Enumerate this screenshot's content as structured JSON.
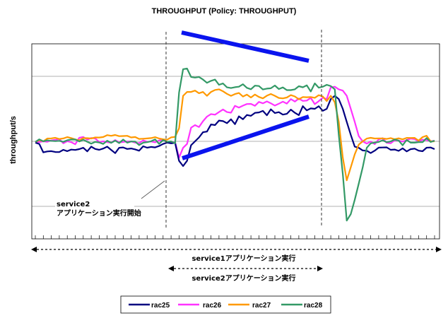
{
  "chart_data": {
    "type": "line",
    "title": "THROUGHPUT (Policy: THROUGHPUT)",
    "xlabel": "",
    "ylabel": "throughput/s",
    "ylim": [
      -0.5,
      2.5
    ],
    "x_count": 101,
    "grid": true,
    "legend": "bottom",
    "series": [
      {
        "name": "rac25",
        "color": "#000080",
        "values": [
          0.98,
          0.96,
          0.83,
          0.845,
          0.849,
          0.836,
          0.835,
          0.87,
          0.849,
          0.873,
          0.867,
          0.88,
          0.901,
          0.846,
          0.919,
          0.883,
          0.87,
          0.889,
          0.919,
          0.868,
          0.818,
          0.901,
          0.906,
          0.883,
          0.89,
          0.876,
          0.855,
          0.924,
          0.902,
          0.914,
          0.907,
          0.928,
          0.96,
          0.98,
          0.97,
          0.975,
          0.7,
          0.62,
          0.7,
          0.94,
          1.0,
          1.06,
          1.14,
          1.15,
          1.26,
          1.25,
          1.32,
          1.311,
          1.279,
          1.339,
          1.264,
          1.385,
          1.34,
          1.405,
          1.392,
          1.438,
          1.445,
          1.468,
          1.401,
          1.492,
          1.436,
          1.449,
          1.411,
          1.423,
          1.488,
          1.439,
          1.403,
          1.541,
          1.476,
          1.506,
          1.5,
          1.54,
          1.47,
          1.5,
          1.65,
          1.7,
          1.65,
          1.5,
          1.3,
          1.1,
          0.92,
          0.9,
          0.86,
          0.855,
          0.82,
          0.856,
          0.903,
          0.905,
          0.908,
          0.87,
          0.874,
          0.853,
          0.892,
          0.845,
          0.879,
          0.888,
          0.857,
          0.848,
          0.902,
          0.905,
          0.88
        ]
      },
      {
        "name": "rac26",
        "color": "#ff33ff",
        "values": [
          1.0,
          0.99,
          1.0,
          0.993,
          1.014,
          1.023,
          1.036,
          0.97,
          1.002,
          0.987,
          0.954,
          1.054,
          1.067,
          1.025,
          1.052,
          1.042,
          0.99,
          1.0,
          0.987,
          0.979,
          1.02,
          0.984,
          0.99,
          0.998,
          0.999,
          0.98,
          0.972,
          1.015,
          0.993,
          0.998,
          0.985,
          1.014,
          1.019,
          0.99,
          0.98,
          0.99,
          0.75,
          0.9,
          0.96,
          1.21,
          1.25,
          1.22,
          1.31,
          1.38,
          1.42,
          1.41,
          1.45,
          1.49,
          1.45,
          1.44,
          1.547,
          1.52,
          1.549,
          1.574,
          1.576,
          1.547,
          1.606,
          1.585,
          1.614,
          1.585,
          1.55,
          1.578,
          1.611,
          1.58,
          1.65,
          1.612,
          1.659,
          1.622,
          1.627,
          1.669,
          1.572,
          1.619,
          1.672,
          1.65,
          1.83,
          1.84,
          1.8,
          1.78,
          1.7,
          1.5,
          1.3,
          1.08,
          1.0,
          0.965,
          0.997,
          0.956,
          1.029,
          1.049,
          0.978,
          0.97,
          1.016,
          1.013,
          0.996,
          1.019,
          1.042,
          1.035,
          1.0,
          1.025,
          1.02,
          1.0,
          1.01
        ]
      },
      {
        "name": "rac27",
        "color": "#ff9900",
        "values": [
          0.99,
          1.02,
          1.0,
          1.043,
          1.046,
          1.054,
          1.036,
          1.045,
          1.065,
          1.05,
          1.029,
          1.015,
          1.05,
          1.049,
          1.044,
          1.06,
          1.059,
          1.066,
          1.096,
          1.085,
          1.098,
          1.079,
          1.082,
          1.085,
          1.06,
          1.066,
          1.037,
          1.04,
          1.045,
          1.05,
          1.064,
          1.043,
          1.032,
          1.025,
          1.061,
          1.069,
          1.2,
          1.7,
          1.76,
          1.76,
          1.78,
          1.74,
          1.76,
          1.7,
          1.76,
          1.79,
          1.8,
          1.77,
          1.73,
          1.7,
          1.727,
          1.743,
          1.689,
          1.718,
          1.674,
          1.72,
          1.683,
          1.661,
          1.702,
          1.728,
          1.7,
          1.667,
          1.661,
          1.674,
          1.711,
          1.69,
          1.647,
          1.682,
          1.678,
          1.682,
          1.67,
          1.71,
          1.69,
          1.62,
          1.7,
          1.6,
          1.3,
          0.75,
          0.4,
          0.6,
          0.8,
          0.95,
          1.0,
          1.042,
          1.054,
          1.044,
          1.045,
          1.045,
          1.037,
          1.05,
          1.032,
          1.047,
          1.03,
          1.053,
          1.052,
          1.053,
          1.011,
          1.065,
          1.086,
          1.0,
          1.0
        ]
      },
      {
        "name": "rac28",
        "color": "#339966",
        "values": [
          0.99,
          1.03,
          1.0,
          1.015,
          1.008,
          1.003,
          1.008,
          0.992,
          1.016,
          1.028,
          1.028,
          0.998,
          1.025,
          0.993,
          0.964,
          0.991,
          0.983,
          0.96,
          1.01,
          0.976,
          1.011,
          0.973,
          1.027,
          0.979,
          0.998,
          0.997,
          0.942,
          0.979,
          0.987,
          1.001,
          1.03,
          0.961,
          1.019,
          0.994,
          0.999,
          0.97,
          1.75,
          2.11,
          2.12,
          1.99,
          1.98,
          1.99,
          1.95,
          1.9,
          1.93,
          1.95,
          1.87,
          1.89,
          1.83,
          1.82,
          1.833,
          1.84,
          1.878,
          1.823,
          1.801,
          1.857,
          1.851,
          1.798,
          1.811,
          1.816,
          1.859,
          1.804,
          1.829,
          1.788,
          1.788,
          1.8,
          1.848,
          1.832,
          1.861,
          1.766,
          1.891,
          1.825,
          1.84,
          1.87,
          1.85,
          1.8,
          1.1,
          0.5,
          -0.22,
          -0.12,
          0.1,
          0.35,
          0.6,
          0.9,
          0.97,
          0.98,
          0.99,
          1.016,
          0.986,
          0.999,
          1.027,
          1.013,
          0.939,
          1.022,
          0.979,
          0.979,
          0.988,
          0.987,
          1.05,
          0.99,
          1.01
        ]
      }
    ],
    "annotations": {
      "marker_line1": "service2",
      "marker_line2": "アプリケーション実行開始",
      "span1": "service1アプリケーション実行",
      "span2": "service2アプリケーション実行"
    }
  }
}
